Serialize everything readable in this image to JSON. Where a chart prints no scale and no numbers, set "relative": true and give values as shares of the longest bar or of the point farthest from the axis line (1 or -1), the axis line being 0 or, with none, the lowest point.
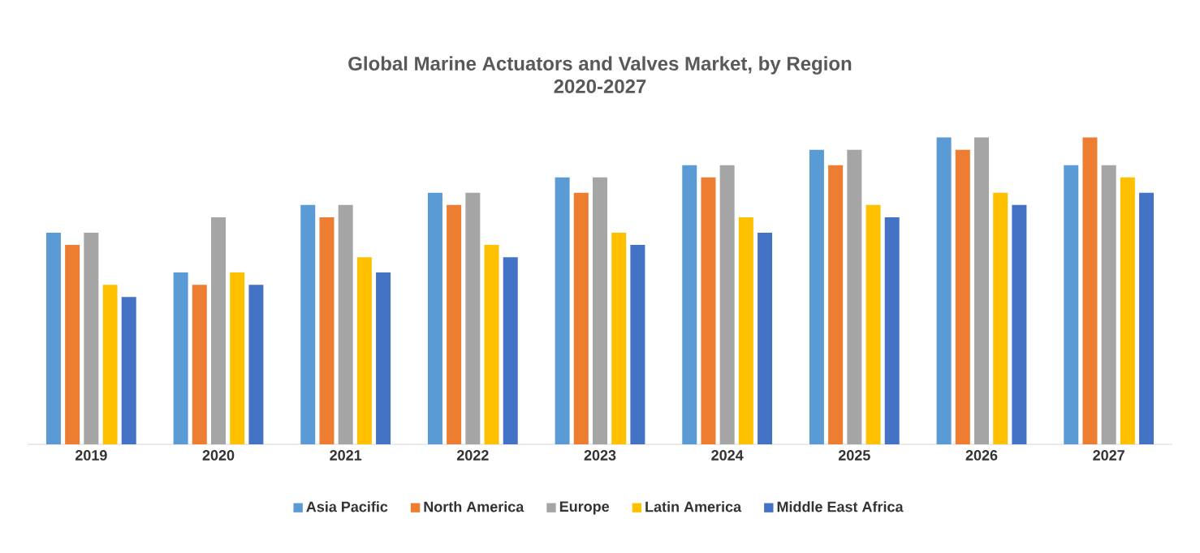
{
  "chart_data": {
    "type": "bar",
    "title": "Global Marine Actuators and Valves Market, by Region",
    "subtitle": "2020-2027",
    "categories": [
      "2019",
      "2020",
      "2021",
      "2022",
      "2023",
      "2024",
      "2025",
      "2026",
      "2027"
    ],
    "relative": true,
    "legend": "bottom",
    "series": [
      {
        "name": "Asia Pacific",
        "color": "#5b9bd5",
        "values": [
          0.69,
          0.56,
          0.78,
          0.82,
          0.87,
          0.91,
          0.96,
          1,
          0.91
        ]
      },
      {
        "name": "North America",
        "color": "#ed7d31",
        "values": [
          0.65,
          0.52,
          0.74,
          0.78,
          0.82,
          0.87,
          0.91,
          0.96,
          1
        ]
      },
      {
        "name": "Europe",
        "color": "#a5a5a5",
        "values": [
          0.69,
          0.74,
          0.78,
          0.82,
          0.87,
          0.91,
          0.96,
          1,
          0.91
        ]
      },
      {
        "name": "Latin America",
        "color": "#ffc000",
        "values": [
          0.52,
          0.56,
          0.61,
          0.65,
          0.69,
          0.74,
          0.78,
          0.82,
          0.87
        ]
      },
      {
        "name": "Middle East Africa",
        "color": "#4472c4",
        "values": [
          0.48,
          0.52,
          0.56,
          0.61,
          0.65,
          0.69,
          0.74,
          0.78,
          0.82
        ]
      }
    ]
  }
}
